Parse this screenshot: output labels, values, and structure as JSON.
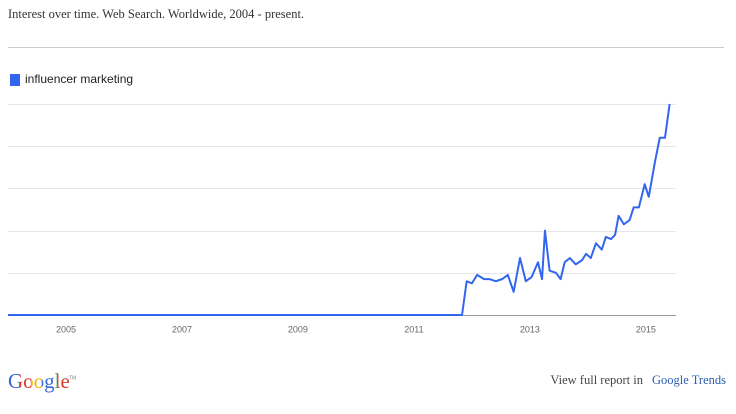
{
  "chart_data": {
    "type": "line",
    "title": "Interest over time. Web Search. Worldwide, 2004 - present.",
    "x": [
      2004,
      2011.83,
      2011.91,
      2012.0,
      2012.09,
      2012.21,
      2012.31,
      2012.41,
      2012.52,
      2012.62,
      2012.72,
      2012.83,
      2012.93,
      2013.03,
      2013.14,
      2013.21,
      2013.26,
      2013.34,
      2013.45,
      2013.53,
      2013.6,
      2013.69,
      2013.79,
      2013.9,
      2013.97,
      2014.05,
      2014.14,
      2014.24,
      2014.31,
      2014.4,
      2014.47,
      2014.53,
      2014.62,
      2014.72,
      2014.79,
      2014.88,
      2014.98,
      2015.05,
      2015.16,
      2015.24,
      2015.33,
      2015.41
    ],
    "series": [
      {
        "name": "influencer marketing",
        "color": "#3366ee",
        "values": [
          0,
          0,
          16,
          15,
          19,
          17,
          17,
          16,
          17,
          19,
          11,
          27,
          16,
          18,
          25,
          17,
          40,
          21,
          20,
          17,
          25,
          27,
          24,
          26,
          29,
          27,
          34,
          31,
          37,
          36,
          38,
          47,
          43,
          45,
          51,
          51,
          62,
          56,
          73,
          84,
          84,
          100
        ]
      }
    ],
    "xlim": [
      2004,
      2015.52
    ],
    "xticks": [
      2005,
      2007,
      2009,
      2011,
      2013,
      2015
    ],
    "ylim": [
      0,
      100
    ],
    "ygrid": [
      20,
      40,
      60,
      80,
      100
    ],
    "grid": true,
    "legend": "top-left"
  },
  "footer": {
    "logo": "Google",
    "trademark": "TM",
    "report_prefix": "View full report in",
    "report_link": "Google Trends"
  }
}
